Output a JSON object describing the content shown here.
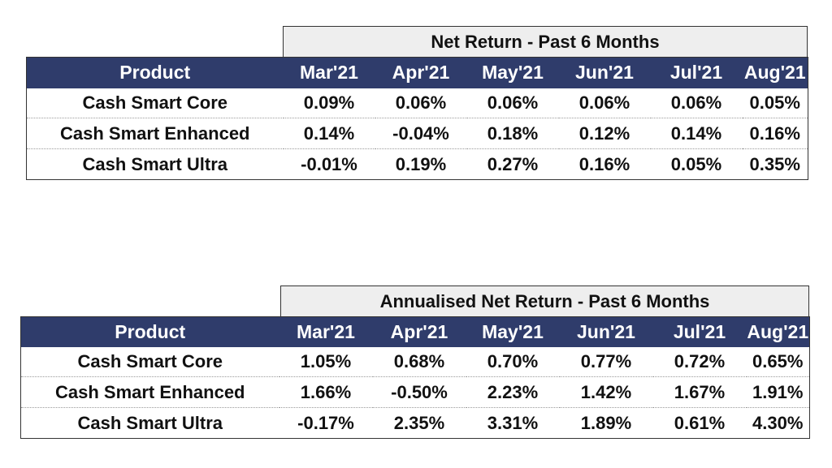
{
  "chart_data": [
    {
      "type": "table",
      "title": "Net Return - Past 6 Months",
      "columns": [
        "Product",
        "Mar'21",
        "Apr'21",
        "May'21",
        "Jun'21",
        "Jul'21",
        "Aug'21"
      ],
      "rows": [
        {
          "product": "Cash Smart Core",
          "values": [
            "0.09%",
            "0.06%",
            "0.06%",
            "0.06%",
            "0.06%",
            "0.05%"
          ]
        },
        {
          "product": "Cash Smart Enhanced",
          "values": [
            "0.14%",
            "-0.04%",
            "0.18%",
            "0.12%",
            "0.14%",
            "0.16%"
          ]
        },
        {
          "product": "Cash Smart Ultra",
          "values": [
            "-0.01%",
            "0.19%",
            "0.27%",
            "0.16%",
            "0.05%",
            "0.35%"
          ]
        }
      ],
      "header_color": "#2f3c6b",
      "caption_color": "#eeeeee"
    },
    {
      "type": "table",
      "title": "Annualised Net Return - Past 6 Months",
      "columns": [
        "Product",
        "Mar'21",
        "Apr'21",
        "May'21",
        "Jun'21",
        "Jul'21",
        "Aug'21"
      ],
      "rows": [
        {
          "product": "Cash Smart Core",
          "values": [
            "1.05%",
            "0.68%",
            "0.70%",
            "0.77%",
            "0.72%",
            "0.65%"
          ]
        },
        {
          "product": "Cash Smart Enhanced",
          "values": [
            "1.66%",
            "-0.50%",
            "2.23%",
            "1.42%",
            "1.67%",
            "1.91%"
          ]
        },
        {
          "product": "Cash Smart Ultra",
          "values": [
            "-0.17%",
            "2.35%",
            "3.31%",
            "1.89%",
            "0.61%",
            "4.30%"
          ]
        }
      ],
      "header_color": "#2f3c6b",
      "caption_color": "#eeeeee"
    }
  ]
}
